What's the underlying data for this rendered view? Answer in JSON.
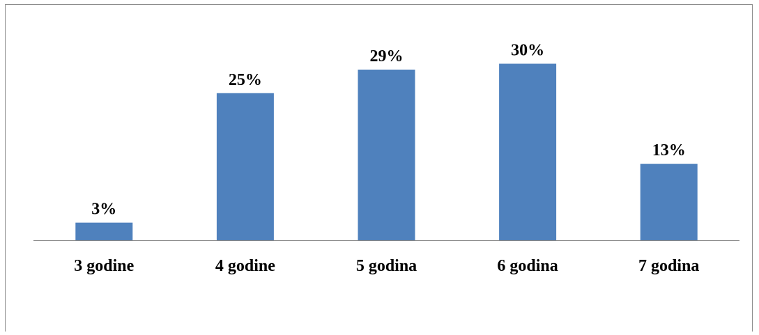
{
  "chart_data": {
    "type": "bar",
    "categories": [
      "3 godine",
      "4 godine",
      "5 godina",
      "6 godina",
      "7 godina"
    ],
    "values": [
      3,
      25,
      29,
      30,
      13
    ],
    "value_labels": [
      "3%",
      "25%",
      "29%",
      "30%",
      "13%"
    ],
    "unit": "%",
    "title": "",
    "xlabel": "",
    "ylabel": "",
    "ylim": [
      0,
      33
    ],
    "grid": false,
    "legend": "none",
    "bar_color": "#4f81bd",
    "axis_color": "#868686"
  }
}
